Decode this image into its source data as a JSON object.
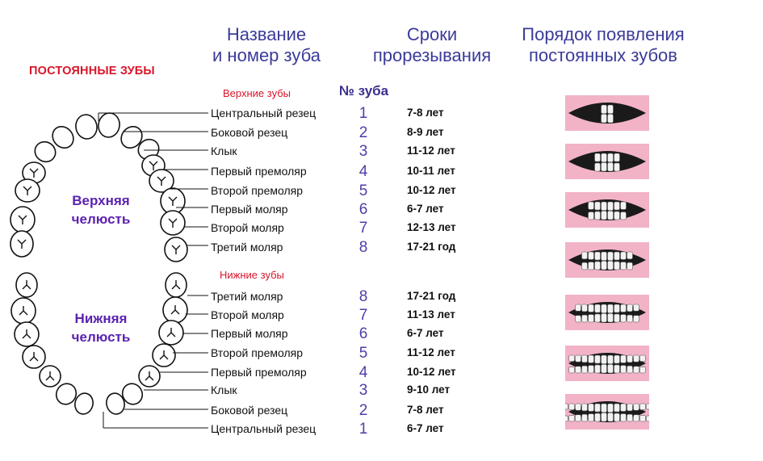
{
  "header": {
    "col_name": [
      "Название",
      "и номер зуба"
    ],
    "col_time": [
      "Сроки",
      "прорезывания"
    ],
    "col_order": [
      "Порядок появления",
      "постоянных зубов"
    ]
  },
  "title": "ПОСТОЯННЫЕ ЗУБЫ",
  "upper_jaw_label": [
    "Верхняя",
    "челюсть"
  ],
  "lower_jaw_label": [
    "Нижняя",
    "челюсть"
  ],
  "number_header": "№ зуба",
  "upper": {
    "label": "Верхние зубы",
    "rows": [
      {
        "name": "Центральный резец",
        "num": "1",
        "time": "7-8 лет"
      },
      {
        "name": "Боковой резец",
        "num": "2",
        "time": "8-9 лет"
      },
      {
        "name": "Клык",
        "num": "3",
        "time": "11-12 лет"
      },
      {
        "name": "Первый премоляр",
        "num": "4",
        "time": "10-11 лет"
      },
      {
        "name": "Второй премоляр",
        "num": "5",
        "time": "10-12 лет"
      },
      {
        "name": "Первый моляр",
        "num": "6",
        "time": "6-7 лет"
      },
      {
        "name": "Второй моляр",
        "num": "7",
        "time": "12-13 лет"
      },
      {
        "name": "Третий моляр",
        "num": "8",
        "time": "17-21 год"
      }
    ]
  },
  "lower": {
    "label": "Нижние зубы",
    "rows": [
      {
        "name": "Третий моляр",
        "num": "8",
        "time": "17-21 год"
      },
      {
        "name": "Второй моляр",
        "num": "7",
        "time": "11-13 лет"
      },
      {
        "name": "Первый моляр",
        "num": "6",
        "time": "6-7 лет"
      },
      {
        "name": "Второй премоляр",
        "num": "5",
        "time": "11-12 лет"
      },
      {
        "name": "Первый премоляр",
        "num": "4",
        "time": "10-12 лет"
      },
      {
        "name": "Клык",
        "num": "3",
        "time": "9-10 лет"
      },
      {
        "name": "Боковой резец",
        "num": "2",
        "time": "7-8 лет"
      },
      {
        "name": "Центральный резец",
        "num": "1",
        "time": "6-7 лет"
      }
    ]
  },
  "colors": {
    "header": "#3b3b9a",
    "title": "#d8152a",
    "jaw_label": "#5b22b0",
    "gum": "#f2b3c6",
    "number": "#4b3fa8"
  },
  "eruption_stages": [
    {
      "stage": 1,
      "upper_teeth": 2,
      "lower_teeth": 2
    },
    {
      "stage": 2,
      "upper_teeth": 4,
      "lower_teeth": 4
    },
    {
      "stage": 3,
      "upper_teeth": 6,
      "lower_teeth": 6
    },
    {
      "stage": 4,
      "upper_teeth": 8,
      "lower_teeth": 8
    },
    {
      "stage": 5,
      "upper_teeth": 10,
      "lower_teeth": 10
    },
    {
      "stage": 6,
      "upper_teeth": 12,
      "lower_teeth": 12
    },
    {
      "stage": 7,
      "upper_teeth": 14,
      "lower_teeth": 14
    }
  ]
}
